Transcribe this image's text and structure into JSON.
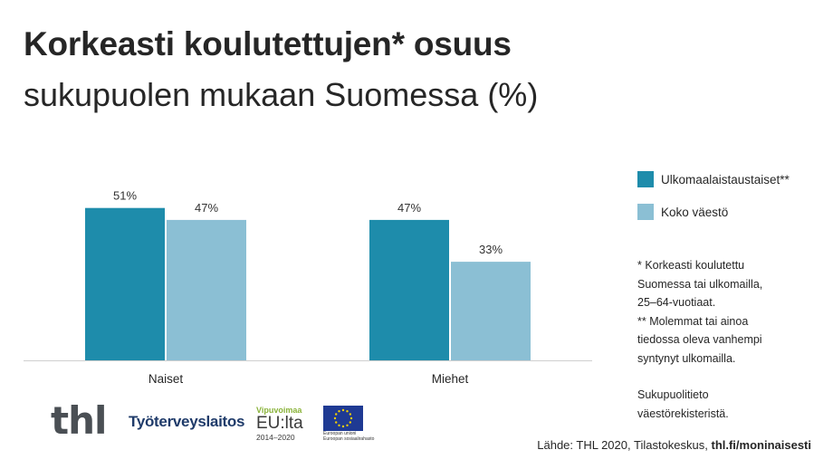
{
  "title": {
    "bold": "Korkeasti koulutettujen* osuus",
    "light": "sukupuolen mukaan Suomessa (%)"
  },
  "colors": {
    "series1": "#1e8cab",
    "series2": "#8bbfd4",
    "axis": "#d0d0d0"
  },
  "chart_data": {
    "type": "bar",
    "categories": [
      "Naiset",
      "Miehet"
    ],
    "series": [
      {
        "name": "Ulkomaalaistaustaiset**",
        "values": [
          51,
          47
        ],
        "labels": [
          "51%",
          "47%"
        ]
      },
      {
        "name": "Koko väestö",
        "values": [
          47,
          33
        ],
        "labels": [
          "47%",
          "33%"
        ]
      }
    ],
    "ylim": [
      0,
      60
    ],
    "title": "Korkeasti koulutettujen* osuus sukupuolen mukaan Suomessa (%)",
    "xlabel": "",
    "ylabel": "",
    "grid": false,
    "legend": "right"
  },
  "notes": {
    "lines": [
      "* Korkeasti koulutettu",
      "Suomessa tai ulkomailla,",
      "25–64-vuotiaat.",
      "** Molemmat tai ainoa",
      "tiedossa oleva vanhempi",
      "syntynyt ulkomailla."
    ],
    "lines2": [
      "Sukupuolitieto",
      "väestörekisteristä."
    ]
  },
  "logos": {
    "thl": "thl",
    "tyo": "Työterveyslaitos",
    "vipu_top": "Vipuvoimaa",
    "vipu_mid": "EU:lta",
    "vipu_bot": "2014–2020",
    "eu_line1": "Euroopan unioni",
    "eu_line2": "Euroopan sosiaalirahasto"
  },
  "source": {
    "text": "Lähde: THL 2020, Tilastokeskus, ",
    "link": "thl.fi/moninaisesti"
  }
}
